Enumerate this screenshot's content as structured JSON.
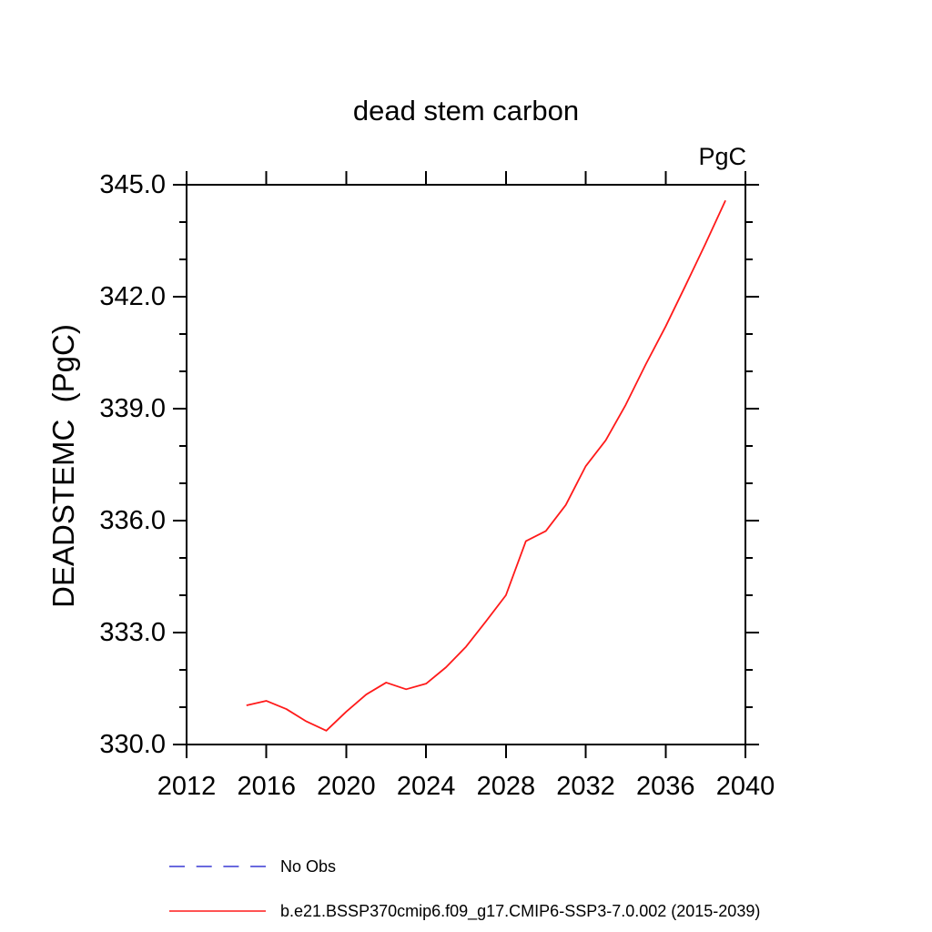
{
  "chart_data": {
    "type": "line",
    "title": "dead stem carbon",
    "units_label": "PgC",
    "ylabel": "DEADSTEMC  (PgC)",
    "xlabel": "",
    "xlim": [
      2012,
      2040
    ],
    "ylim": [
      330.0,
      345.0
    ],
    "grid": false,
    "axis_color": "#000000",
    "xticks": {
      "values": [
        2012,
        2016,
        2020,
        2024,
        2028,
        2032,
        2036,
        2040
      ],
      "labels": [
        "2012",
        "2016",
        "2020",
        "2024",
        "2028",
        "2032",
        "2036",
        "2040"
      ]
    },
    "yticks": {
      "values": [
        330,
        333,
        336,
        339,
        342,
        345
      ],
      "labels": [
        "330.0",
        "333.0",
        "336.0",
        "339.0",
        "342.0",
        "345.0"
      ]
    },
    "y_minor_step": 1.0,
    "series": [
      {
        "name": "b.e21.BSSP370cmip6.f09_g17.CMIP6-SSP3-7.0.002 (2015-2039)",
        "color": "#ff1a1a",
        "x": [
          2015,
          2016,
          2017,
          2018,
          2019,
          2020,
          2021,
          2022,
          2023,
          2024,
          2025,
          2026,
          2027,
          2028,
          2029,
          2030,
          2031,
          2032,
          2033,
          2034,
          2035,
          2036,
          2037,
          2038,
          2039
        ],
        "values": [
          331.05,
          331.17,
          330.95,
          330.62,
          330.37,
          330.88,
          331.34,
          331.66,
          331.48,
          331.63,
          332.07,
          332.62,
          333.3,
          334.0,
          335.45,
          335.72,
          336.42,
          337.46,
          338.15,
          339.1,
          340.18,
          341.2,
          342.3,
          343.42,
          344.58
        ]
      }
    ],
    "legend": [
      {
        "label": "No Obs",
        "color": "#6a6ade",
        "style": "dashed"
      },
      {
        "label": "b.e21.BSSP370cmip6.f09_g17.CMIP6-SSP3-7.0.002 (2015-2039)",
        "color": "#ff1a1a",
        "style": "solid"
      }
    ],
    "legend_position": "bottom-left"
  }
}
